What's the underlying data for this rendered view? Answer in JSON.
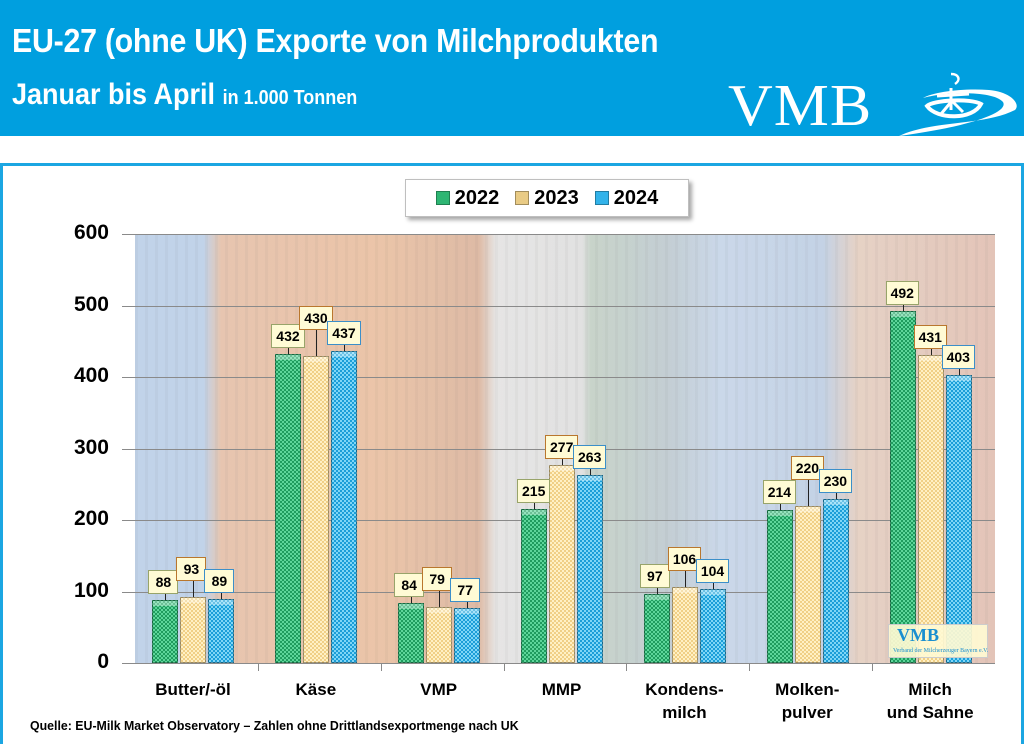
{
  "header": {
    "title_line1": "EU-27 (ohne UK) Exporte von Milchprodukten",
    "title_line2": "Januar bis April",
    "unit": "in 1.000 Tonnen",
    "logo_text": "VMB"
  },
  "legend": [
    {
      "label": "2022",
      "color": "#2eb673"
    },
    {
      "label": "2023",
      "color": "#f5d791"
    },
    {
      "label": "2024",
      "color": "#32b3ea"
    }
  ],
  "y_axis": {
    "ticks": [
      "600",
      "500",
      "400",
      "300",
      "200",
      "100",
      "0"
    ]
  },
  "mini_logo": {
    "title": "VMB",
    "subtitle": "Verband der Milcherzeuger Bayern e.V."
  },
  "source": "Quelle: EU-Milk Market Observatory – Zahlen ohne Drittlandsexportmenge nach UK",
  "chart_data": {
    "type": "bar",
    "title": "EU-27 (ohne UK) Exporte von Milchprodukten Januar bis April",
    "subtitle": "in 1.000 Tonnen",
    "xlabel": "",
    "ylabel": "",
    "ylim": [
      0,
      600
    ],
    "yticks": [
      0,
      100,
      200,
      300,
      400,
      500,
      600
    ],
    "grid": true,
    "legend_position": "top",
    "categories": [
      "Butter/-öl",
      "Käse",
      "VMP",
      "MMP",
      "Kondens-\nmilch",
      "Molken-\npulver",
      "Milch\nund Sahne"
    ],
    "category_lines": [
      [
        "Butter/-öl"
      ],
      [
        "Käse"
      ],
      [
        "VMP"
      ],
      [
        "MMP"
      ],
      [
        "Kondens-",
        "milch"
      ],
      [
        "Molken-",
        "pulver"
      ],
      [
        "Milch",
        "und Sahne"
      ]
    ],
    "series": [
      {
        "name": "2022",
        "values": [
          88,
          432,
          84,
          215,
          97,
          214,
          492
        ]
      },
      {
        "name": "2023",
        "values": [
          93,
          430,
          79,
          277,
          106,
          220,
          431
        ]
      },
      {
        "name": "2024",
        "values": [
          89,
          437,
          77,
          263,
          104,
          230,
          403
        ]
      }
    ]
  }
}
